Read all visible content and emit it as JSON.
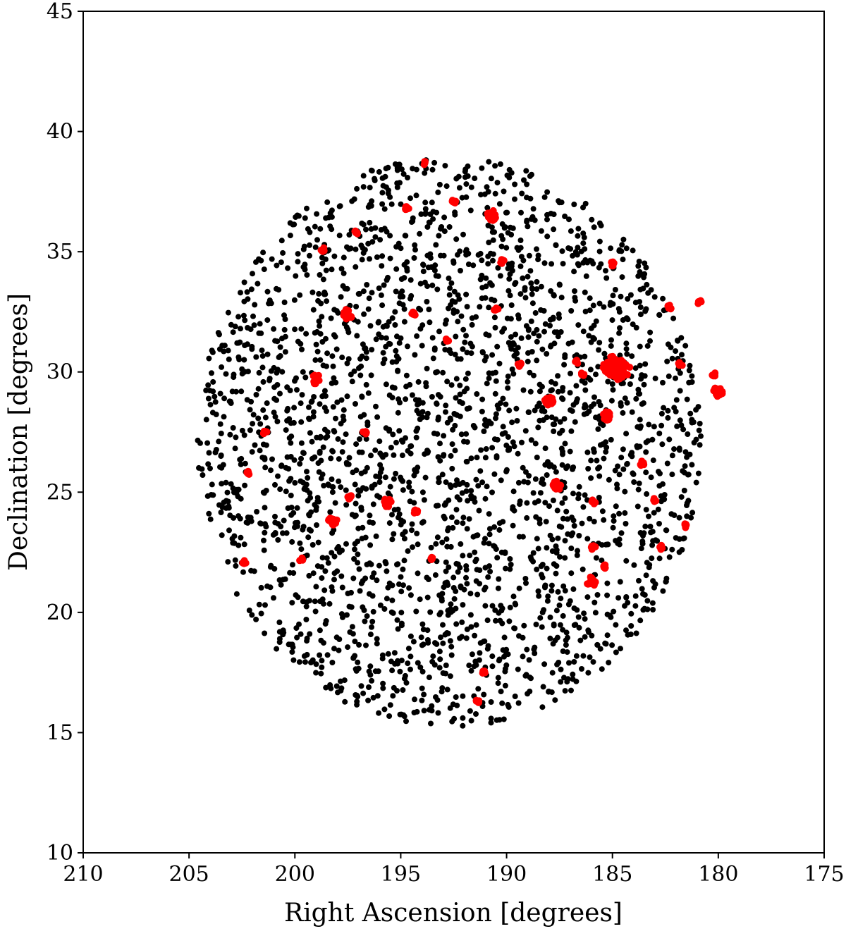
{
  "chart_data": {
    "type": "scatter",
    "title": "",
    "xlabel": "Right Ascension [degrees]",
    "ylabel": "Declination [degrees]",
    "xlim": [
      210,
      175
    ],
    "ylim": [
      10,
      45
    ],
    "x_ticks": [
      210,
      205,
      200,
      195,
      190,
      185,
      180,
      175
    ],
    "y_ticks": [
      10,
      15,
      20,
      25,
      30,
      35,
      40,
      45
    ],
    "grid": false,
    "colors": {
      "field": "#000000",
      "groups": "#ff0000"
    },
    "field_galaxies": {
      "color": "#000000",
      "center": [
        192.7,
        27.1
      ],
      "radius_deg": 11.9,
      "count": 2600,
      "distribution": "approximately uniform within a circular footprint of ~12 degree radius"
    },
    "groups": [
      {
        "ra": 185.0,
        "dec": 30.2,
        "size": "large"
      },
      {
        "ra": 184.6,
        "dec": 30.1,
        "size": "large"
      },
      {
        "ra": 180.0,
        "dec": 29.2,
        "size": "medium"
      },
      {
        "ra": 190.7,
        "dec": 36.5,
        "size": "medium"
      },
      {
        "ra": 187.6,
        "dec": 25.3,
        "size": "medium"
      },
      {
        "ra": 186.0,
        "dec": 21.3,
        "size": "medium"
      },
      {
        "ra": 185.3,
        "dec": 28.2,
        "size": "medium"
      },
      {
        "ra": 188.0,
        "dec": 28.8,
        "size": "medium"
      },
      {
        "ra": 197.5,
        "dec": 32.4,
        "size": "medium"
      },
      {
        "ra": 199.0,
        "dec": 29.7,
        "size": "medium"
      },
      {
        "ra": 195.6,
        "dec": 24.6,
        "size": "medium"
      },
      {
        "ra": 198.2,
        "dec": 23.8,
        "size": "medium"
      },
      {
        "ra": 199.7,
        "dec": 22.2,
        "size": "small"
      },
      {
        "ra": 193.5,
        "dec": 22.2,
        "size": "small"
      },
      {
        "ra": 192.5,
        "dec": 37.1,
        "size": "small"
      },
      {
        "ra": 190.5,
        "dec": 32.6,
        "size": "small"
      },
      {
        "ra": 185.9,
        "dec": 24.6,
        "size": "small"
      },
      {
        "ra": 183.0,
        "dec": 24.7,
        "size": "small"
      },
      {
        "ra": 185.0,
        "dec": 34.5,
        "size": "small"
      },
      {
        "ra": 190.2,
        "dec": 34.6,
        "size": "small"
      },
      {
        "ra": 194.4,
        "dec": 32.4,
        "size": "small"
      },
      {
        "ra": 193.9,
        "dec": 38.7,
        "size": "small"
      },
      {
        "ra": 194.7,
        "dec": 36.8,
        "size": "small"
      },
      {
        "ra": 197.1,
        "dec": 35.8,
        "size": "small"
      },
      {
        "ra": 198.7,
        "dec": 35.1,
        "size": "small"
      },
      {
        "ra": 189.4,
        "dec": 30.3,
        "size": "small"
      },
      {
        "ra": 186.7,
        "dec": 30.4,
        "size": "small"
      },
      {
        "ra": 182.3,
        "dec": 32.7,
        "size": "small"
      },
      {
        "ra": 180.9,
        "dec": 32.9,
        "size": "small"
      },
      {
        "ra": 181.8,
        "dec": 30.3,
        "size": "small"
      },
      {
        "ra": 180.2,
        "dec": 29.9,
        "size": "small"
      },
      {
        "ra": 192.8,
        "dec": 31.3,
        "size": "small"
      },
      {
        "ra": 196.7,
        "dec": 27.5,
        "size": "small"
      },
      {
        "ra": 201.4,
        "dec": 27.5,
        "size": "small"
      },
      {
        "ra": 202.2,
        "dec": 25.8,
        "size": "small"
      },
      {
        "ra": 197.4,
        "dec": 24.8,
        "size": "small"
      },
      {
        "ra": 194.3,
        "dec": 24.2,
        "size": "small"
      },
      {
        "ra": 202.4,
        "dec": 22.1,
        "size": "small"
      },
      {
        "ra": 183.6,
        "dec": 26.2,
        "size": "small"
      },
      {
        "ra": 182.7,
        "dec": 22.7,
        "size": "small"
      },
      {
        "ra": 181.6,
        "dec": 23.6,
        "size": "small"
      },
      {
        "ra": 185.9,
        "dec": 22.7,
        "size": "small"
      },
      {
        "ra": 185.4,
        "dec": 21.9,
        "size": "small"
      },
      {
        "ra": 191.1,
        "dec": 17.5,
        "size": "small"
      },
      {
        "ra": 191.4,
        "dec": 16.3,
        "size": "small"
      },
      {
        "ra": 186.4,
        "dec": 29.9,
        "size": "small"
      }
    ]
  }
}
